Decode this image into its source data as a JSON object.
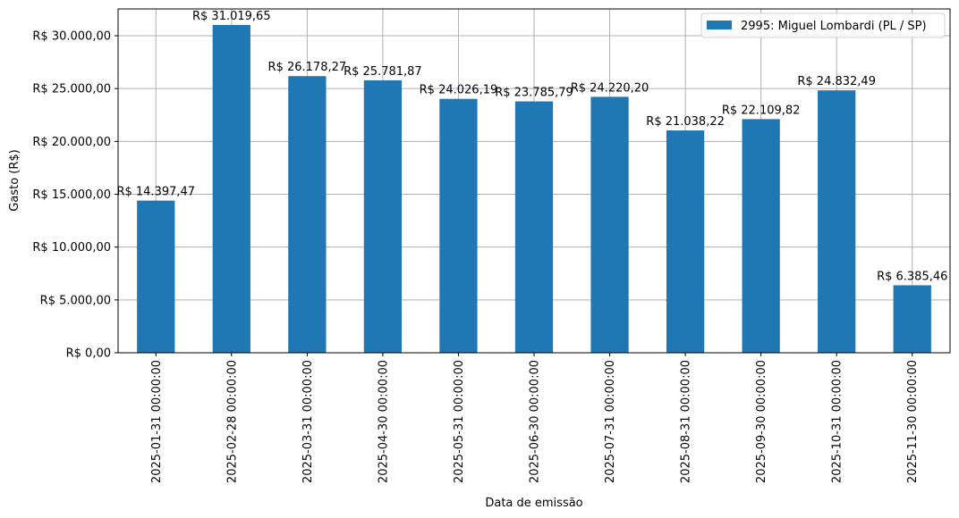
{
  "chart_data": {
    "type": "bar",
    "title": "",
    "xlabel": "Data de emissão",
    "ylabel": "Gasto (R$)",
    "ylim": [
      0,
      32500
    ],
    "grid": true,
    "legend_position": "upper right",
    "categories": [
      "2025-01-31 00:00:00",
      "2025-02-28 00:00:00",
      "2025-03-31 00:00:00",
      "2025-04-30 00:00:00",
      "2025-05-31 00:00:00",
      "2025-06-30 00:00:00",
      "2025-07-31 00:00:00",
      "2025-08-31 00:00:00",
      "2025-09-30 00:00:00",
      "2025-10-31 00:00:00",
      "2025-11-30 00:00:00"
    ],
    "series": [
      {
        "name": "2995: Miguel Lombardi (PL / SP)",
        "color": "#1f77b4",
        "values": [
          14397.47,
          31019.65,
          26178.27,
          25781.87,
          24026.19,
          23785.79,
          24220.2,
          21038.22,
          22109.82,
          24832.49,
          6385.46
        ]
      }
    ],
    "bar_labels": [
      "R$ 14.397,47",
      "R$ 31.019,65",
      "R$ 26.178,27",
      "R$ 25.781,87",
      "R$ 24.026,19",
      "R$ 23.785,79",
      "R$ 24.220,20",
      "R$ 21.038,22",
      "R$ 22.109,82",
      "R$ 24.832,49",
      "R$ 6.385,46"
    ],
    "yticks": [
      0,
      5000,
      10000,
      15000,
      20000,
      25000,
      30000
    ],
    "ytick_labels": [
      "R$ 0,00",
      "R$ 5.000,00",
      "R$ 10.000,00",
      "R$ 15.000,00",
      "R$ 20.000,00",
      "R$ 25.000,00",
      "R$ 30.000,00"
    ]
  },
  "legend": {
    "label": "2995: Miguel Lombardi (PL / SP)"
  }
}
